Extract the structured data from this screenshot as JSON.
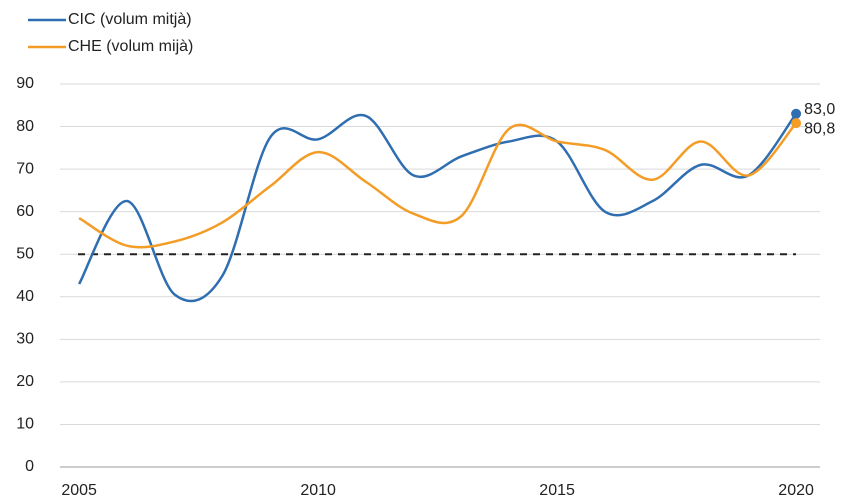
{
  "chart_data": {
    "type": "line",
    "x": [
      2005,
      2006,
      2007,
      2008,
      2009,
      2010,
      2011,
      2012,
      2013,
      2014,
      2015,
      2016,
      2017,
      2018,
      2019,
      2020
    ],
    "series": [
      {
        "name": "CIC (volum mitjà)",
        "color": "#2f6eb0",
        "values": [
          43,
          62.5,
          40.5,
          45,
          77.5,
          77,
          82.5,
          68.5,
          73,
          76.5,
          76.5,
          60,
          62.5,
          71,
          68.5,
          83.0
        ],
        "value_labels": [
          null,
          null,
          null,
          null,
          null,
          null,
          null,
          null,
          null,
          null,
          null,
          null,
          null,
          null,
          null,
          "83,0"
        ]
      },
      {
        "name": "CHE (volum mijà)",
        "color": "#f39c26",
        "values": [
          58.5,
          52,
          53,
          57.5,
          66,
          74,
          67,
          59.5,
          59,
          79.5,
          76.5,
          74.5,
          67.5,
          76.5,
          68.5,
          80.8
        ],
        "value_labels": [
          null,
          null,
          null,
          null,
          null,
          null,
          null,
          null,
          null,
          null,
          null,
          null,
          null,
          null,
          null,
          "80,8"
        ]
      }
    ],
    "reference_line": 50,
    "xlim": [
      2004.6,
      2020.5
    ],
    "xticks": [
      2005,
      2010,
      2015,
      2020
    ],
    "ylim": [
      0,
      90
    ],
    "yticks": [
      0,
      10,
      20,
      30,
      40,
      50,
      60,
      70,
      80,
      90
    ],
    "grid": true,
    "legend": "top-left"
  }
}
